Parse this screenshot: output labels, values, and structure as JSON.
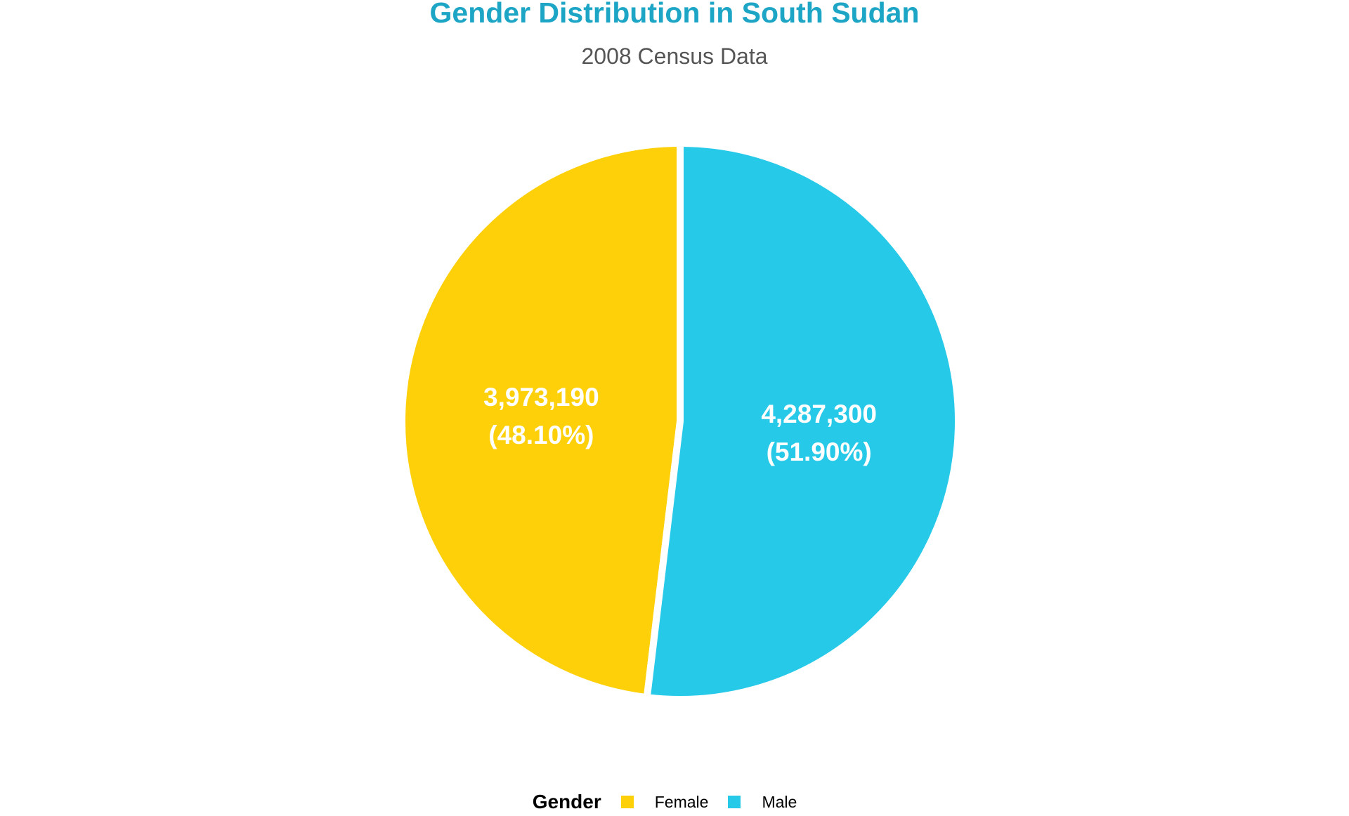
{
  "chart_data": {
    "type": "pie",
    "title": "Gender Distribution in South Sudan",
    "subtitle": "2008 Census Data",
    "legend_title": "Gender",
    "legend_position": "bottom",
    "slices": [
      {
        "label": "Female",
        "value": 3973190,
        "value_text": "3,973,190",
        "percent_text": "(48.10%)",
        "color": "#FDD00A"
      },
      {
        "label": "Male",
        "value": 4287300,
        "value_text": "4,287,300",
        "percent_text": "(51.90%)",
        "color": "#26C9E8"
      }
    ]
  },
  "colors": {
    "title": "#1DA5C6",
    "subtitle": "#555555"
  }
}
